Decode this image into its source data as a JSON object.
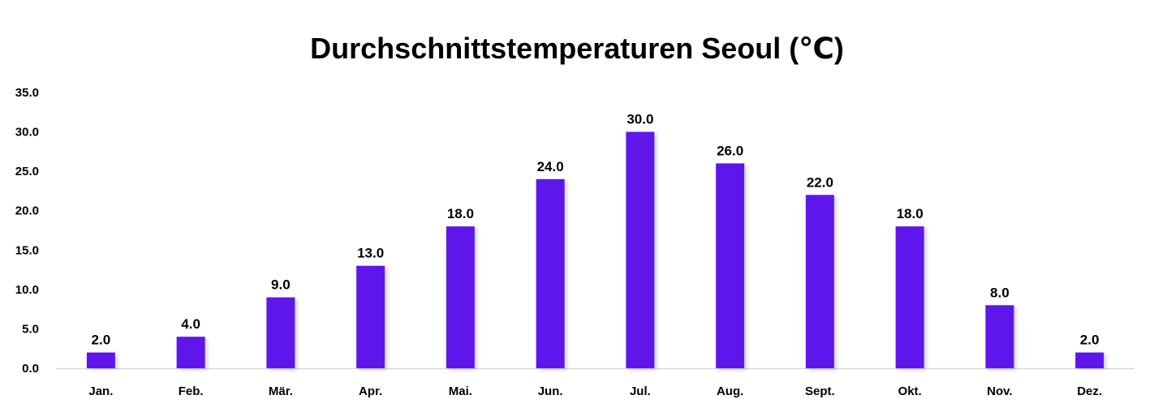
{
  "chart_data": {
    "type": "bar",
    "title": "Durchschnittstemperaturen Seoul (℃)",
    "xlabel": "",
    "ylabel": "",
    "categories": [
      "Jan.",
      "Feb.",
      "Mär.",
      "Apr.",
      "Mai.",
      "Jun.",
      "Jul.",
      "Aug.",
      "Sept.",
      "Okt.",
      "Nov.",
      "Dez."
    ],
    "values": [
      2.0,
      4.0,
      9.0,
      13.0,
      18.0,
      24.0,
      30.0,
      26.0,
      22.0,
      18.0,
      8.0,
      2.0
    ],
    "value_labels": [
      "2.0",
      "4.0",
      "9.0",
      "13.0",
      "18.0",
      "24.0",
      "30.0",
      "26.0",
      "22.0",
      "18.0",
      "8.0",
      "2.0"
    ],
    "ylim": [
      0,
      35
    ],
    "yticks": [
      "0.0",
      "5.0",
      "10.0",
      "15.0",
      "20.0",
      "25.0",
      "30.0",
      "35.0"
    ],
    "grid": false,
    "legend": "none",
    "bar_color": "#5E17EB"
  }
}
